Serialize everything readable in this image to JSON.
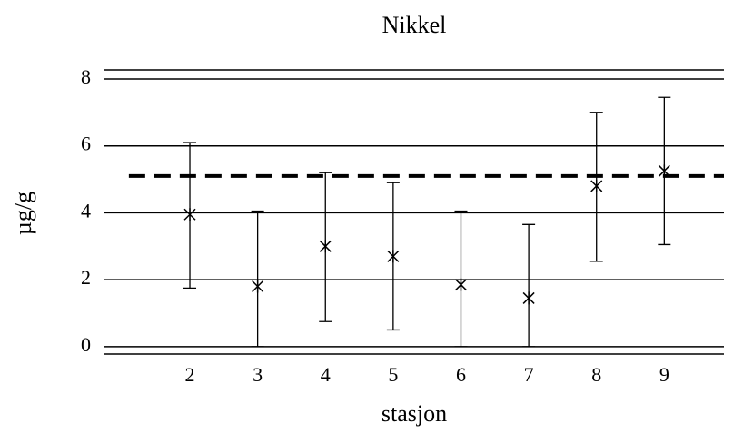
{
  "chart_data": {
    "type": "errorbar",
    "title": "Nikkel",
    "xlabel": "stasjon",
    "ylabel": "µg/g",
    "x": [
      2,
      3,
      4,
      5,
      6,
      7,
      8,
      9
    ],
    "values": [
      3.95,
      1.8,
      3.0,
      2.7,
      1.85,
      1.45,
      4.8,
      5.25
    ],
    "lower": [
      1.75,
      0,
      0.75,
      0.5,
      0,
      0,
      2.55,
      3.05
    ],
    "upper": [
      6.1,
      4.05,
      5.2,
      4.9,
      4.05,
      3.65,
      7.0,
      7.45
    ],
    "color": "#000000",
    "reference_line": {
      "value": 5.1,
      "xlim": [
        1.1,
        9.88
      ]
    },
    "xlim": [
      0.74,
      9.88
    ],
    "ylim": [
      -0.22,
      8.27
    ],
    "xticks": [
      2,
      3,
      4,
      5,
      6,
      7,
      8,
      9
    ],
    "yticks": [
      0,
      2,
      4,
      6,
      8
    ],
    "grid": true
  }
}
